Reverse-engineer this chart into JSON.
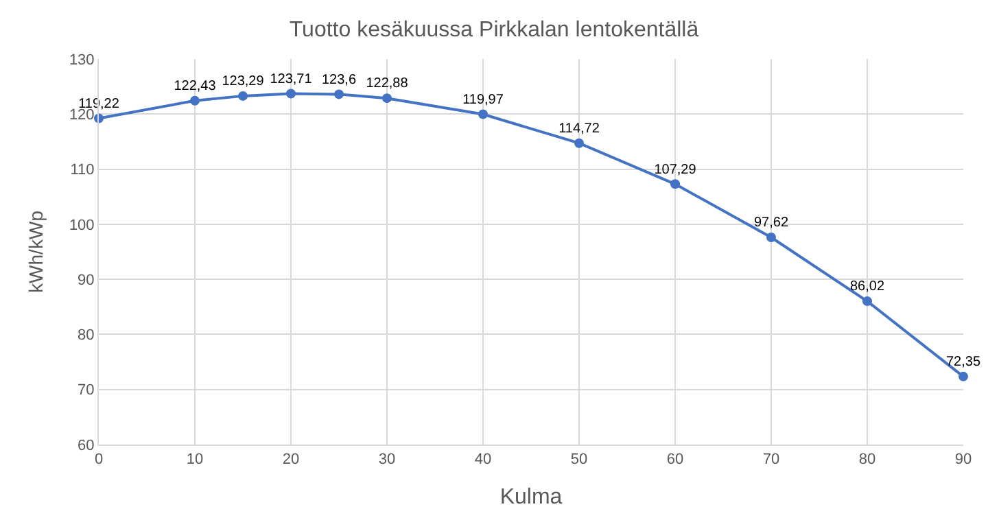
{
  "chart_data": {
    "type": "line",
    "title": "Tuotto kesäkuussa Pirkkalan lentokentällä",
    "xlabel": "Kulma",
    "ylabel": "kWh/kWp",
    "x": [
      0,
      10,
      15,
      20,
      25,
      30,
      40,
      50,
      60,
      70,
      80,
      90
    ],
    "series": [
      {
        "color": "#4472c4",
        "values": [
          119.22,
          122.43,
          123.29,
          123.71,
          123.6,
          122.88,
          119.97,
          114.72,
          107.29,
          97.62,
          86.02,
          72.35
        ],
        "value_labels": [
          "119,22",
          "122,43",
          "123,29",
          "123,71",
          "123,6",
          "122,88",
          "119,97",
          "114,72",
          "107,29",
          "97,62",
          "86,02",
          "72,35"
        ]
      }
    ],
    "xlim": [
      0,
      90
    ],
    "xticks": [
      0,
      10,
      20,
      30,
      40,
      50,
      60,
      70,
      80,
      90
    ],
    "ylim": [
      60,
      130
    ],
    "yticks": [
      60,
      70,
      80,
      90,
      100,
      110,
      120,
      130
    ],
    "grid": true,
    "marker": "circle",
    "line_style": "solid",
    "legend": false
  }
}
